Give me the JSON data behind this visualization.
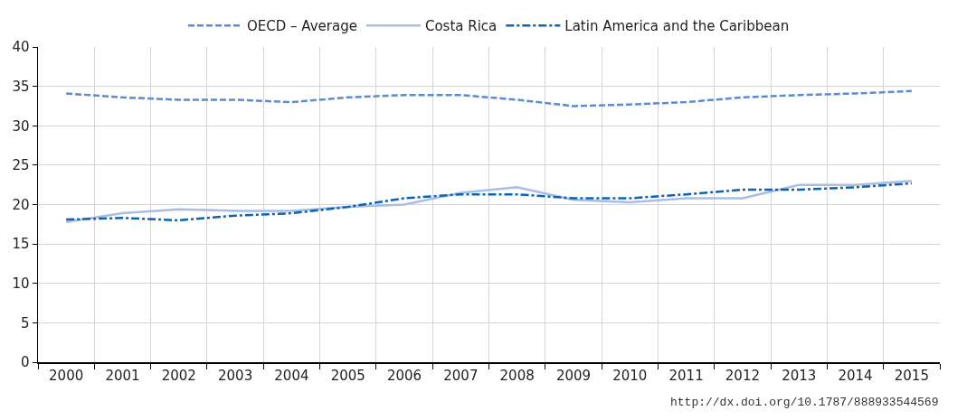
{
  "chart_data": {
    "type": "line",
    "categories": [
      "2000",
      "2001",
      "2002",
      "2003",
      "2004",
      "2005",
      "2006",
      "2007",
      "2008",
      "2009",
      "2010",
      "2011",
      "2012",
      "2013",
      "2014",
      "2015"
    ],
    "series": [
      {
        "name": "OECD – Average",
        "color": "#5b8bd0",
        "line_style": "dashed",
        "values": [
          34.1,
          33.6,
          33.3,
          33.3,
          33.0,
          33.6,
          33.9,
          33.9,
          33.3,
          32.5,
          32.7,
          33.0,
          33.6,
          33.9,
          34.1,
          34.4
        ]
      },
      {
        "name": "Costa Rica",
        "color": "#a9bde6",
        "line_style": "solid",
        "values": [
          17.8,
          18.9,
          19.4,
          19.2,
          19.2,
          19.7,
          20.0,
          21.5,
          22.2,
          20.6,
          20.3,
          20.8,
          20.8,
          22.5,
          22.5,
          23.0
        ]
      },
      {
        "name": "Latin America and the Caribbean",
        "color": "#0a64b4",
        "line_style": "dashdot",
        "values": [
          18.1,
          18.3,
          18.0,
          18.6,
          18.9,
          19.7,
          20.8,
          21.3,
          21.3,
          20.8,
          20.8,
          21.3,
          21.9,
          21.9,
          22.2,
          22.7
        ]
      }
    ],
    "ylim": [
      0,
      40
    ],
    "yticks": [
      0,
      5,
      10,
      15,
      20,
      25,
      30,
      35,
      40
    ],
    "grid": true,
    "legend": "top",
    "marker": "none",
    "annotations": [
      "http://dx.doi.org/10.1787/888933544569"
    ]
  }
}
